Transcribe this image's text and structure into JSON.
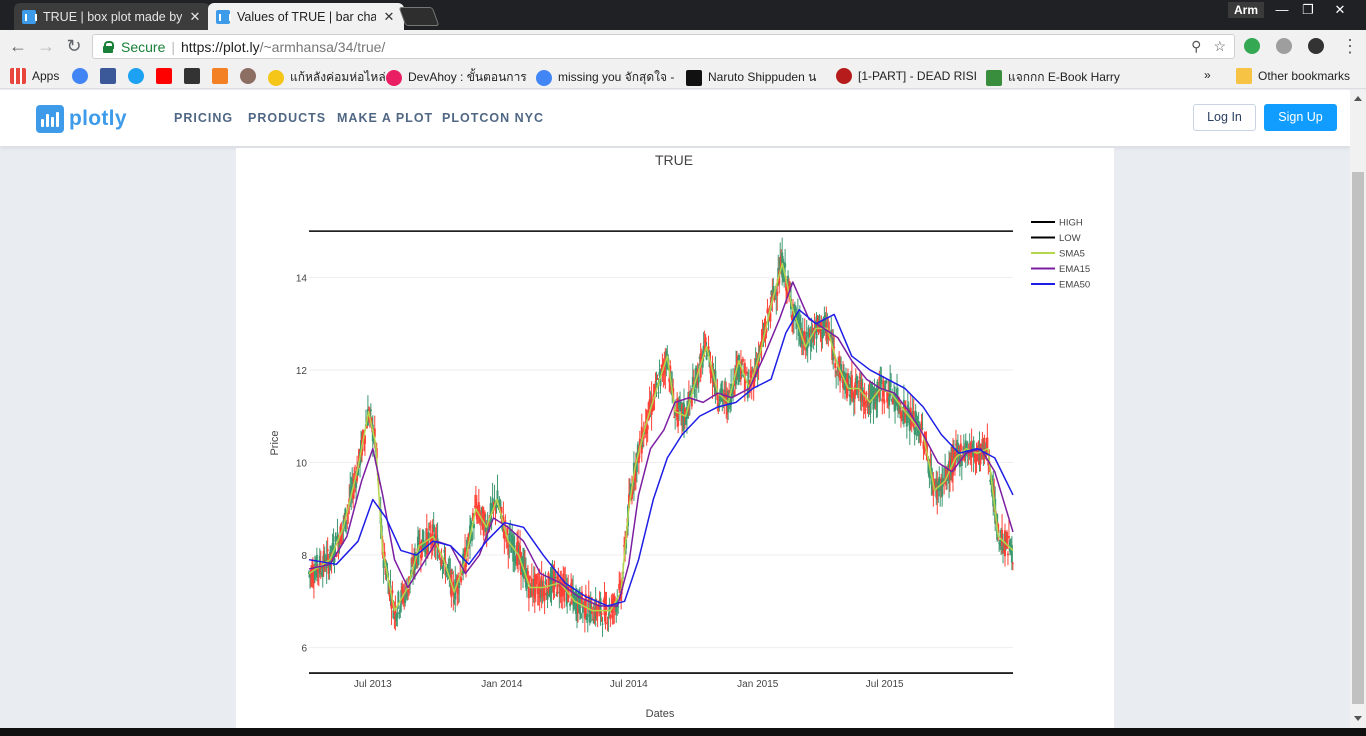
{
  "browser": {
    "tabs": [
      {
        "title": "TRUE | box plot made by",
        "active": false
      },
      {
        "title": "Values of TRUE | bar char",
        "active": true
      }
    ],
    "profile": "Arm",
    "window_controls": {
      "minimize": "—",
      "restore": "❐",
      "close": "✕"
    },
    "secure_label": "Secure",
    "url_host": "https://plot.ly",
    "url_path": "/~armhansa/34/true/",
    "bookmarks": [
      {
        "label": "Apps",
        "color": "#e8453c"
      },
      {
        "label": "",
        "color": "#4285f4"
      },
      {
        "label": "",
        "color": "#3b5998"
      },
      {
        "label": "",
        "color": "#1da1f2"
      },
      {
        "label": "",
        "color": "#ff0000"
      },
      {
        "label": "",
        "color": "#333333"
      },
      {
        "label": "",
        "color": "#f48024"
      },
      {
        "label": "",
        "color": "#8d6e63"
      },
      {
        "label": "แก้หลังค่อมห่อไหล่",
        "color": "#f5c518"
      },
      {
        "label": "DevAhoy : ขั้นตอนการ",
        "color": "#e91e63"
      },
      {
        "label": "missing you จักสุดใจ -",
        "color": "#4285f4"
      },
      {
        "label": "Naruto Shippuden น",
        "color": "#111111"
      },
      {
        "label": "[1-PART] - DEAD RISI",
        "color": "#b71c1c"
      },
      {
        "label": "แจกกก E-Book Harry",
        "color": "#388e3c"
      }
    ],
    "bookmarks_more": "»",
    "other_bookmarks": "Other bookmarks"
  },
  "site": {
    "logo_text": "plotly",
    "nav": [
      "PRICING",
      "PRODUCTS",
      "MAKE A PLOT",
      "PLOTCON NYC"
    ],
    "login": "Log In",
    "signup": "Sign Up"
  },
  "chart_data": {
    "type": "line",
    "title": "TRUE",
    "xlabel": "Dates",
    "ylabel": "Price",
    "x_range": [
      "2013-04-01",
      "2015-12-31"
    ],
    "ylim": [
      5.3,
      15.5
    ],
    "x_ticks": [
      "Jul 2013",
      "Jan 2014",
      "Jul 2014",
      "Jan 2015",
      "Jul 2015"
    ],
    "y_ticks": [
      6,
      8,
      10,
      12,
      14
    ],
    "legend_position": "top-right",
    "grid": true,
    "high_level": 15.0,
    "low_level": 5.45,
    "candlestick_colors": {
      "up": "#3d9970",
      "down": "#ff4136"
    },
    "series": [
      {
        "name": "HIGH",
        "color": "#000000",
        "dates": [
          "2013-04-01",
          "2015-12-31"
        ],
        "values": [
          15.0,
          15.0
        ]
      },
      {
        "name": "LOW",
        "color": "#000000",
        "dates": [
          "2013-04-01",
          "2015-12-31"
        ],
        "values": [
          5.45,
          5.45
        ]
      },
      {
        "name": "SMA5",
        "color": "#b5d54a",
        "dates": [
          "2013-04-01",
          "2013-05-01",
          "2013-05-20",
          "2013-06-10",
          "2013-06-25",
          "2013-07-05",
          "2013-07-15",
          "2013-08-01",
          "2013-08-20",
          "2013-09-05",
          "2013-09-25",
          "2013-10-10",
          "2013-10-25",
          "2013-11-10",
          "2013-11-25",
          "2013-12-10",
          "2013-12-25",
          "2014-01-10",
          "2014-01-25",
          "2014-02-10",
          "2014-03-01",
          "2014-03-25",
          "2014-04-15",
          "2014-05-10",
          "2014-06-05",
          "2014-06-20",
          "2014-07-01",
          "2014-07-10",
          "2014-07-25",
          "2014-08-10",
          "2014-08-25",
          "2014-09-05",
          "2014-09-20",
          "2014-10-05",
          "2014-10-20",
          "2014-11-05",
          "2014-11-20",
          "2014-12-05",
          "2014-12-20",
          "2015-01-05",
          "2015-01-20",
          "2015-02-05",
          "2015-02-20",
          "2015-03-10",
          "2015-03-25",
          "2015-04-10",
          "2015-04-25",
          "2015-05-10",
          "2015-05-25",
          "2015-06-10",
          "2015-06-25",
          "2015-07-10",
          "2015-07-25",
          "2015-08-10",
          "2015-08-25",
          "2015-09-10",
          "2015-09-25",
          "2015-10-10",
          "2015-10-25",
          "2015-11-10",
          "2015-11-25",
          "2015-12-10",
          "2015-12-31"
        ],
        "values": [
          7.6,
          7.9,
          8.6,
          9.9,
          11.1,
          10.4,
          8.1,
          6.8,
          7.3,
          8.2,
          8.4,
          7.9,
          7.2,
          7.9,
          9.0,
          8.6,
          9.2,
          8.3,
          8.0,
          7.3,
          7.3,
          7.4,
          7.0,
          6.8,
          6.8,
          7.2,
          9.0,
          9.9,
          10.8,
          11.6,
          12.3,
          11.1,
          11.0,
          11.8,
          12.5,
          11.5,
          11.3,
          12.2,
          11.6,
          12.4,
          13.4,
          14.3,
          13.3,
          12.5,
          12.9,
          12.9,
          12.1,
          11.6,
          11.6,
          11.3,
          11.6,
          11.5,
          11.2,
          10.9,
          10.6,
          9.4,
          9.6,
          10.1,
          10.3,
          10.2,
          10.3,
          8.4,
          8.1
        ]
      },
      {
        "name": "EMA15",
        "color": "#7b1fa2",
        "dates": [
          "2013-04-01",
          "2013-05-01",
          "2013-05-25",
          "2013-06-15",
          "2013-07-01",
          "2013-07-15",
          "2013-08-01",
          "2013-08-20",
          "2013-09-10",
          "2013-09-30",
          "2013-10-20",
          "2013-11-10",
          "2013-11-30",
          "2013-12-20",
          "2014-01-10",
          "2014-02-01",
          "2014-02-25",
          "2014-03-25",
          "2014-04-20",
          "2014-05-20",
          "2014-06-15",
          "2014-07-01",
          "2014-07-15",
          "2014-08-01",
          "2014-08-20",
          "2014-09-05",
          "2014-09-25",
          "2014-10-15",
          "2014-11-05",
          "2014-11-25",
          "2014-12-20",
          "2015-01-10",
          "2015-02-01",
          "2015-02-20",
          "2015-03-15",
          "2015-04-05",
          "2015-04-25",
          "2015-05-15",
          "2015-06-05",
          "2015-06-25",
          "2015-07-15",
          "2015-08-05",
          "2015-08-25",
          "2015-09-15",
          "2015-10-05",
          "2015-10-25",
          "2015-11-15",
          "2015-12-05",
          "2015-12-31"
        ],
        "values": [
          7.7,
          7.8,
          8.4,
          9.6,
          10.3,
          9.3,
          7.9,
          7.3,
          7.8,
          8.3,
          8.2,
          7.6,
          8.0,
          8.8,
          8.6,
          8.3,
          7.6,
          7.4,
          7.1,
          6.9,
          6.9,
          7.8,
          9.3,
          10.3,
          10.7,
          11.3,
          11.4,
          11.3,
          11.5,
          11.4,
          11.6,
          12.3,
          13.1,
          13.9,
          13.1,
          12.9,
          12.7,
          12.2,
          11.8,
          11.6,
          11.5,
          11.1,
          10.6,
          10.0,
          9.8,
          10.2,
          10.3,
          9.8,
          8.5
        ]
      },
      {
        "name": "EMA50",
        "color": "#1e1ee6",
        "dates": [
          "2013-04-01",
          "2013-05-10",
          "2013-06-10",
          "2013-07-01",
          "2013-07-20",
          "2013-08-10",
          "2013-09-01",
          "2013-09-25",
          "2013-10-20",
          "2013-11-15",
          "2013-12-10",
          "2014-01-05",
          "2014-02-01",
          "2014-03-01",
          "2014-04-01",
          "2014-05-01",
          "2014-06-01",
          "2014-06-25",
          "2014-07-15",
          "2014-08-05",
          "2014-08-25",
          "2014-09-15",
          "2014-10-10",
          "2014-11-05",
          "2014-12-01",
          "2014-12-25",
          "2015-01-20",
          "2015-02-10",
          "2015-03-01",
          "2015-03-25",
          "2015-04-20",
          "2015-05-15",
          "2015-06-10",
          "2015-07-05",
          "2015-07-30",
          "2015-08-25",
          "2015-09-20",
          "2015-10-15",
          "2015-11-10",
          "2015-12-05",
          "2015-12-31"
        ],
        "values": [
          7.9,
          7.8,
          8.3,
          9.2,
          8.8,
          8.1,
          8.0,
          8.3,
          8.2,
          7.8,
          8.3,
          8.7,
          8.6,
          8.0,
          7.4,
          7.1,
          6.9,
          7.0,
          7.9,
          9.2,
          10.1,
          10.6,
          11.0,
          11.2,
          11.3,
          11.6,
          11.8,
          12.8,
          13.3,
          13.0,
          13.2,
          12.3,
          12.0,
          11.8,
          11.6,
          11.2,
          10.6,
          10.2,
          10.3,
          10.1,
          9.3
        ]
      }
    ]
  }
}
